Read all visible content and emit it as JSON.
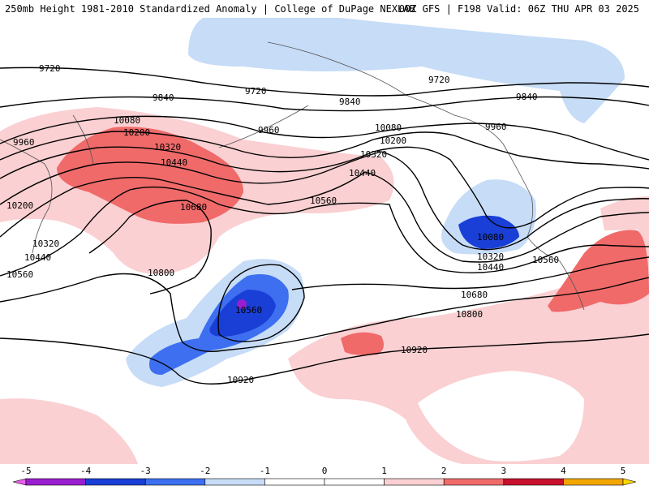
{
  "header": {
    "title_left": "250mb Height 1981-2010 Standardized Anomaly | College of DuPage NEXLAB",
    "title_right": "00Z GFS | F198 Valid: 06Z THU APR 03 2025"
  },
  "map": {
    "variable": "250mb height",
    "units": "m",
    "contour_labels": [
      "9720",
      "9720",
      "9720",
      "9840",
      "9840",
      "9840",
      "9960",
      "9960",
      "9960",
      "10080",
      "10080",
      "10080",
      "10200",
      "10200",
      "10200",
      "10320",
      "10320",
      "10320",
      "10320",
      "10440",
      "10440",
      "10440",
      "10440",
      "10560",
      "10560",
      "10560",
      "10560",
      "10680",
      "10680",
      "10800",
      "10800",
      "10920",
      "10920"
    ],
    "low_center_label": "10560",
    "anomaly_colors": {
      "very_neg": "#1a3fd6",
      "neg2": "#3d6ff0",
      "neg1": "#c6dcf7",
      "pos1": "#fad0d2",
      "pos2": "#f06a6a",
      "pos3": "#c8102e"
    }
  },
  "colorbar": {
    "ticks": [
      "-5",
      "-4",
      "-3",
      "-2",
      "-1",
      "0",
      "1",
      "2",
      "3",
      "4",
      "5"
    ],
    "colors": [
      "#e85ee8",
      "#9a1ecf",
      "#1a3fd6",
      "#3d6ff0",
      "#c6dcf7",
      "#ffffff",
      "#ffffff",
      "#fad0d2",
      "#f06a6a",
      "#c8102e",
      "#f2a600",
      "#ffd700"
    ]
  }
}
